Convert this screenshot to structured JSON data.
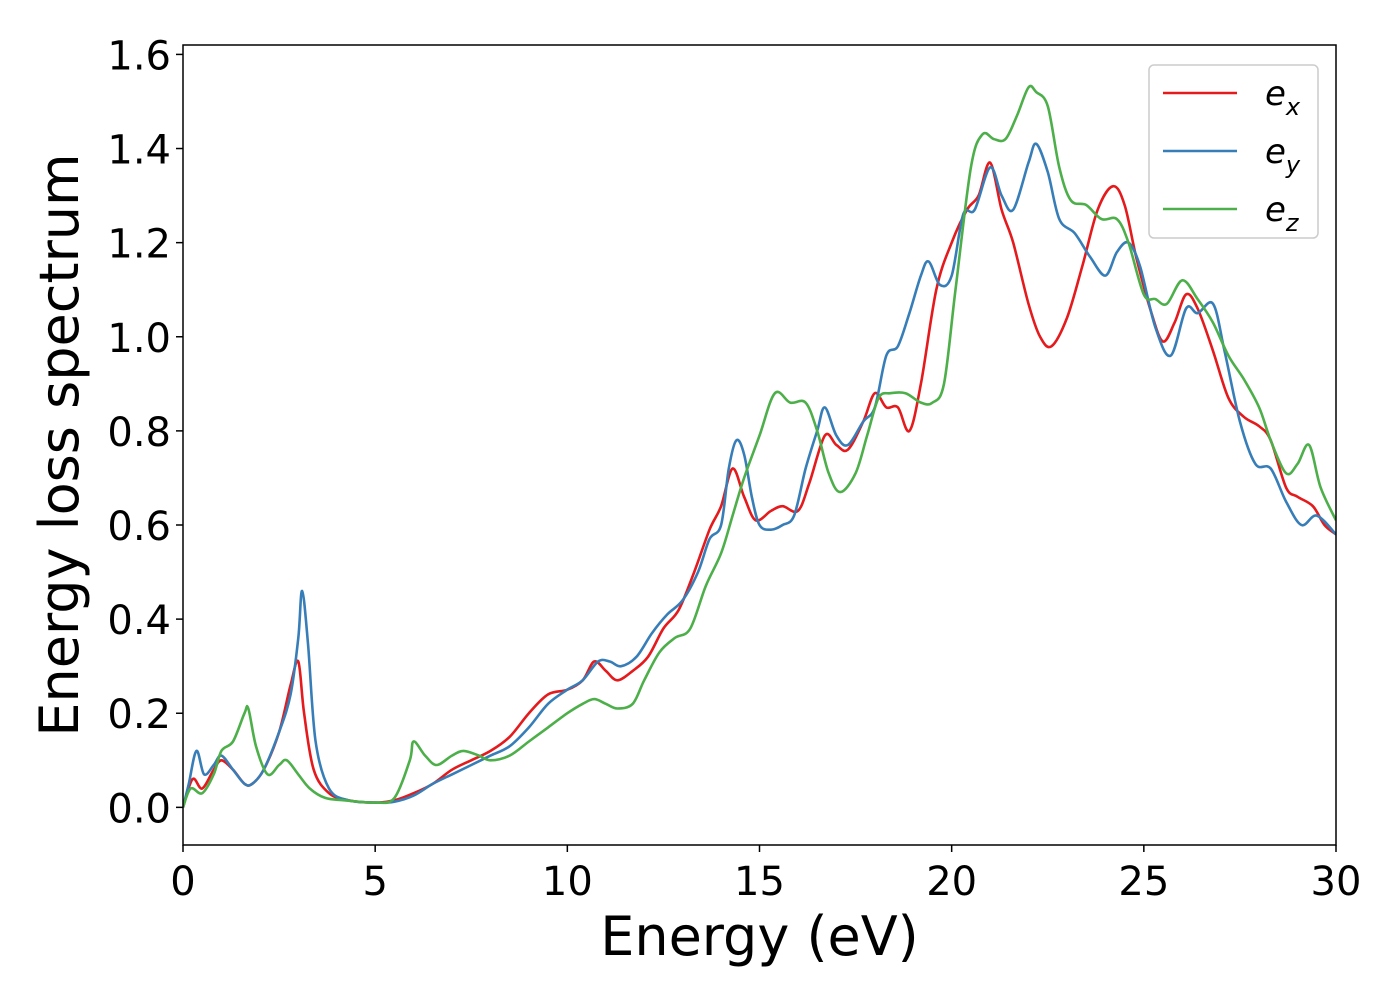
{
  "chart_data": {
    "type": "line",
    "title": "",
    "xlabel": "Energy (eV)",
    "ylabel": "Energy loss spectrum",
    "xlim": [
      0,
      30
    ],
    "ylim": [
      -0.08,
      1.62
    ],
    "xticks": [
      0,
      5,
      10,
      15,
      20,
      25,
      30
    ],
    "xtick_labels": [
      "0",
      "5",
      "10",
      "15",
      "20",
      "25",
      "30"
    ],
    "yticks": [
      0.0,
      0.2,
      0.4,
      0.6,
      0.8,
      1.0,
      1.2,
      1.4,
      1.6
    ],
    "ytick_labels": [
      "0.0",
      "0.2",
      "0.4",
      "0.6",
      "0.8",
      "1.0",
      "1.2",
      "1.4",
      "1.6"
    ],
    "grid": false,
    "legend_position": "top-right",
    "series": [
      {
        "name": "e_x",
        "label_main": "e",
        "label_sub": "x",
        "color": "#e41a1c",
        "points": [
          [
            0,
            0
          ],
          [
            0.25,
            0.06
          ],
          [
            0.5,
            0.04
          ],
          [
            0.8,
            0.08
          ],
          [
            1.0,
            0.1
          ],
          [
            1.3,
            0.08
          ],
          [
            1.6,
            0.05
          ],
          [
            1.8,
            0.05
          ],
          [
            2.1,
            0.08
          ],
          [
            2.5,
            0.16
          ],
          [
            2.8,
            0.26
          ],
          [
            3.0,
            0.31
          ],
          [
            3.15,
            0.2
          ],
          [
            3.4,
            0.08
          ],
          [
            3.8,
            0.03
          ],
          [
            4.3,
            0.015
          ],
          [
            5.0,
            0.01
          ],
          [
            5.5,
            0.015
          ],
          [
            6.0,
            0.03
          ],
          [
            6.5,
            0.05
          ],
          [
            7.0,
            0.08
          ],
          [
            7.5,
            0.1
          ],
          [
            8.0,
            0.12
          ],
          [
            8.5,
            0.15
          ],
          [
            9.0,
            0.2
          ],
          [
            9.5,
            0.24
          ],
          [
            10.0,
            0.25
          ],
          [
            10.4,
            0.27
          ],
          [
            10.7,
            0.31
          ],
          [
            11.0,
            0.29
          ],
          [
            11.3,
            0.27
          ],
          [
            11.7,
            0.29
          ],
          [
            12.1,
            0.32
          ],
          [
            12.5,
            0.38
          ],
          [
            12.9,
            0.42
          ],
          [
            13.3,
            0.5
          ],
          [
            13.7,
            0.59
          ],
          [
            14.0,
            0.64
          ],
          [
            14.3,
            0.72
          ],
          [
            14.6,
            0.66
          ],
          [
            14.9,
            0.61
          ],
          [
            15.3,
            0.63
          ],
          [
            15.6,
            0.64
          ],
          [
            16.0,
            0.63
          ],
          [
            16.3,
            0.69
          ],
          [
            16.7,
            0.79
          ],
          [
            17.0,
            0.77
          ],
          [
            17.3,
            0.76
          ],
          [
            17.7,
            0.82
          ],
          [
            18.0,
            0.88
          ],
          [
            18.3,
            0.85
          ],
          [
            18.6,
            0.85
          ],
          [
            18.9,
            0.8
          ],
          [
            19.2,
            0.9
          ],
          [
            19.6,
            1.1
          ],
          [
            20.0,
            1.2
          ],
          [
            20.4,
            1.27
          ],
          [
            20.7,
            1.3
          ],
          [
            21.0,
            1.37
          ],
          [
            21.3,
            1.27
          ],
          [
            21.6,
            1.2
          ],
          [
            22.0,
            1.07
          ],
          [
            22.3,
            1.0
          ],
          [
            22.6,
            0.98
          ],
          [
            23.0,
            1.04
          ],
          [
            23.4,
            1.15
          ],
          [
            23.8,
            1.27
          ],
          [
            24.2,
            1.32
          ],
          [
            24.5,
            1.28
          ],
          [
            24.8,
            1.17
          ],
          [
            25.2,
            1.05
          ],
          [
            25.5,
            0.99
          ],
          [
            25.8,
            1.03
          ],
          [
            26.1,
            1.09
          ],
          [
            26.4,
            1.06
          ],
          [
            26.8,
            0.97
          ],
          [
            27.2,
            0.87
          ],
          [
            27.6,
            0.83
          ],
          [
            28.0,
            0.81
          ],
          [
            28.3,
            0.78
          ],
          [
            28.7,
            0.68
          ],
          [
            29.0,
            0.66
          ],
          [
            29.4,
            0.64
          ],
          [
            29.7,
            0.6
          ],
          [
            30.0,
            0.58
          ]
        ]
      },
      {
        "name": "e_y",
        "label_main": "e",
        "label_sub": "y",
        "color": "#377eb8",
        "points": [
          [
            0,
            0
          ],
          [
            0.15,
            0.05
          ],
          [
            0.35,
            0.12
          ],
          [
            0.55,
            0.07
          ],
          [
            0.8,
            0.09
          ],
          [
            1.0,
            0.11
          ],
          [
            1.3,
            0.08
          ],
          [
            1.6,
            0.05
          ],
          [
            1.8,
            0.05
          ],
          [
            2.1,
            0.08
          ],
          [
            2.5,
            0.16
          ],
          [
            2.8,
            0.24
          ],
          [
            3.0,
            0.36
          ],
          [
            3.1,
            0.46
          ],
          [
            3.25,
            0.35
          ],
          [
            3.45,
            0.14
          ],
          [
            3.8,
            0.04
          ],
          [
            4.3,
            0.015
          ],
          [
            5.0,
            0.01
          ],
          [
            5.5,
            0.012
          ],
          [
            6.0,
            0.025
          ],
          [
            6.5,
            0.05
          ],
          [
            7.0,
            0.07
          ],
          [
            7.5,
            0.09
          ],
          [
            8.0,
            0.11
          ],
          [
            8.5,
            0.13
          ],
          [
            9.0,
            0.17
          ],
          [
            9.5,
            0.22
          ],
          [
            10.0,
            0.25
          ],
          [
            10.4,
            0.27
          ],
          [
            10.8,
            0.31
          ],
          [
            11.1,
            0.31
          ],
          [
            11.4,
            0.3
          ],
          [
            11.8,
            0.32
          ],
          [
            12.2,
            0.37
          ],
          [
            12.6,
            0.41
          ],
          [
            13.0,
            0.44
          ],
          [
            13.4,
            0.5
          ],
          [
            13.7,
            0.57
          ],
          [
            14.0,
            0.6
          ],
          [
            14.2,
            0.72
          ],
          [
            14.4,
            0.78
          ],
          [
            14.6,
            0.75
          ],
          [
            14.8,
            0.66
          ],
          [
            15.0,
            0.6
          ],
          [
            15.3,
            0.59
          ],
          [
            15.6,
            0.6
          ],
          [
            15.9,
            0.62
          ],
          [
            16.2,
            0.72
          ],
          [
            16.5,
            0.8
          ],
          [
            16.7,
            0.85
          ],
          [
            17.0,
            0.79
          ],
          [
            17.3,
            0.77
          ],
          [
            17.7,
            0.82
          ],
          [
            18.0,
            0.85
          ],
          [
            18.3,
            0.96
          ],
          [
            18.6,
            0.98
          ],
          [
            18.9,
            1.05
          ],
          [
            19.2,
            1.13
          ],
          [
            19.4,
            1.16
          ],
          [
            19.7,
            1.11
          ],
          [
            20.0,
            1.13
          ],
          [
            20.3,
            1.26
          ],
          [
            20.6,
            1.27
          ],
          [
            21.0,
            1.36
          ],
          [
            21.3,
            1.3
          ],
          [
            21.6,
            1.27
          ],
          [
            22.0,
            1.37
          ],
          [
            22.2,
            1.41
          ],
          [
            22.5,
            1.35
          ],
          [
            22.8,
            1.25
          ],
          [
            23.2,
            1.22
          ],
          [
            23.6,
            1.17
          ],
          [
            24.0,
            1.13
          ],
          [
            24.3,
            1.18
          ],
          [
            24.6,
            1.2
          ],
          [
            24.9,
            1.15
          ],
          [
            25.3,
            1.02
          ],
          [
            25.7,
            0.96
          ],
          [
            26.1,
            1.06
          ],
          [
            26.4,
            1.05
          ],
          [
            26.8,
            1.07
          ],
          [
            27.1,
            0.97
          ],
          [
            27.5,
            0.82
          ],
          [
            27.9,
            0.73
          ],
          [
            28.3,
            0.72
          ],
          [
            28.7,
            0.65
          ],
          [
            29.1,
            0.6
          ],
          [
            29.5,
            0.62
          ],
          [
            30.0,
            0.58
          ]
        ]
      },
      {
        "name": "e_z",
        "label_main": "e",
        "label_sub": "z",
        "color": "#4daf4a",
        "points": [
          [
            0,
            0
          ],
          [
            0.2,
            0.04
          ],
          [
            0.5,
            0.03
          ],
          [
            0.8,
            0.07
          ],
          [
            1.0,
            0.12
          ],
          [
            1.3,
            0.14
          ],
          [
            1.6,
            0.2
          ],
          [
            1.7,
            0.21
          ],
          [
            1.9,
            0.13
          ],
          [
            2.2,
            0.07
          ],
          [
            2.5,
            0.09
          ],
          [
            2.7,
            0.1
          ],
          [
            3.0,
            0.07
          ],
          [
            3.3,
            0.04
          ],
          [
            3.7,
            0.02
          ],
          [
            4.2,
            0.015
          ],
          [
            5.0,
            0.01
          ],
          [
            5.5,
            0.02
          ],
          [
            5.9,
            0.1
          ],
          [
            6.0,
            0.14
          ],
          [
            6.3,
            0.11
          ],
          [
            6.6,
            0.09
          ],
          [
            7.0,
            0.11
          ],
          [
            7.3,
            0.12
          ],
          [
            7.7,
            0.11
          ],
          [
            8.0,
            0.1
          ],
          [
            8.5,
            0.11
          ],
          [
            9.0,
            0.14
          ],
          [
            9.5,
            0.17
          ],
          [
            10.0,
            0.2
          ],
          [
            10.4,
            0.22
          ],
          [
            10.7,
            0.23
          ],
          [
            11.0,
            0.22
          ],
          [
            11.3,
            0.21
          ],
          [
            11.7,
            0.22
          ],
          [
            12.0,
            0.27
          ],
          [
            12.4,
            0.33
          ],
          [
            12.8,
            0.36
          ],
          [
            13.2,
            0.38
          ],
          [
            13.6,
            0.47
          ],
          [
            14.0,
            0.54
          ],
          [
            14.3,
            0.62
          ],
          [
            14.6,
            0.7
          ],
          [
            15.0,
            0.79
          ],
          [
            15.4,
            0.88
          ],
          [
            15.8,
            0.86
          ],
          [
            16.2,
            0.86
          ],
          [
            16.5,
            0.8
          ],
          [
            16.8,
            0.71
          ],
          [
            17.1,
            0.67
          ],
          [
            17.5,
            0.71
          ],
          [
            17.8,
            0.79
          ],
          [
            18.1,
            0.87
          ],
          [
            18.4,
            0.88
          ],
          [
            18.8,
            0.88
          ],
          [
            19.2,
            0.86
          ],
          [
            19.5,
            0.86
          ],
          [
            19.8,
            0.9
          ],
          [
            20.1,
            1.1
          ],
          [
            20.5,
            1.36
          ],
          [
            20.8,
            1.43
          ],
          [
            21.1,
            1.42
          ],
          [
            21.4,
            1.42
          ],
          [
            21.7,
            1.47
          ],
          [
            22.0,
            1.53
          ],
          [
            22.2,
            1.52
          ],
          [
            22.5,
            1.49
          ],
          [
            22.8,
            1.36
          ],
          [
            23.1,
            1.29
          ],
          [
            23.5,
            1.28
          ],
          [
            23.9,
            1.25
          ],
          [
            24.3,
            1.25
          ],
          [
            24.6,
            1.2
          ],
          [
            25.0,
            1.09
          ],
          [
            25.3,
            1.08
          ],
          [
            25.6,
            1.07
          ],
          [
            26.0,
            1.12
          ],
          [
            26.4,
            1.08
          ],
          [
            26.8,
            1.03
          ],
          [
            27.2,
            0.96
          ],
          [
            27.6,
            0.91
          ],
          [
            28.0,
            0.85
          ],
          [
            28.3,
            0.78
          ],
          [
            28.7,
            0.71
          ],
          [
            29.0,
            0.73
          ],
          [
            29.3,
            0.77
          ],
          [
            29.6,
            0.68
          ],
          [
            30.0,
            0.61
          ]
        ]
      }
    ]
  }
}
